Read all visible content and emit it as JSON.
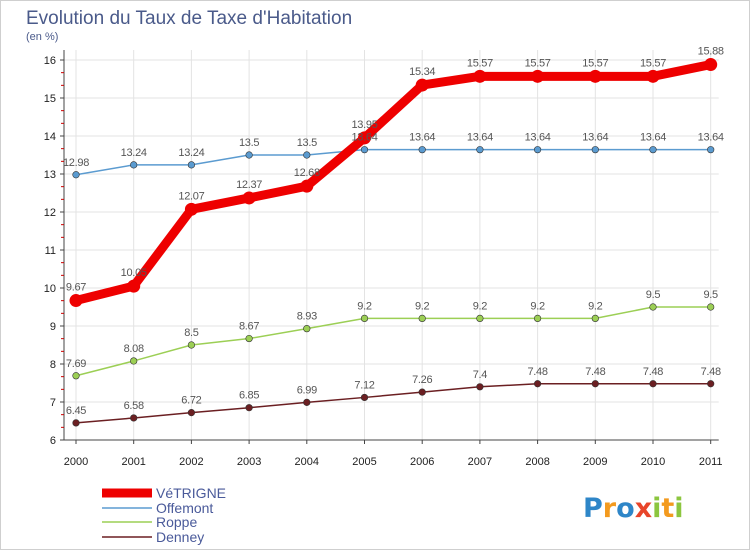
{
  "chart_data": {
    "type": "line",
    "title": "Evolution du Taux de Taxe d'Habitation",
    "subtitle": "(en %)",
    "xlabel": "",
    "ylabel": "",
    "ylim": [
      6,
      16
    ],
    "yticks": [
      "6",
      "7",
      "8",
      "9",
      "10",
      "11",
      "12",
      "13",
      "14",
      "15",
      "16"
    ],
    "x": [
      "2000",
      "2001",
      "2002",
      "2003",
      "2004",
      "2005",
      "2006",
      "2007",
      "2008",
      "2009",
      "2010",
      "2011"
    ],
    "series": [
      {
        "name": "Denney",
        "color": "#6b1f22",
        "values": [
          6.45,
          6.58,
          6.72,
          6.85,
          6.99,
          7.12,
          7.26,
          7.4,
          7.48,
          7.48,
          7.48,
          7.48
        ],
        "labels": [
          "6.45",
          "6.58",
          "6.72",
          "6.85",
          "6.99",
          "7.12",
          "7.26",
          "7.4",
          "7.48",
          "7.48",
          "7.48",
          "7.48"
        ]
      },
      {
        "name": "Roppe",
        "color": "#9ccf55",
        "values": [
          7.69,
          8.08,
          8.5,
          8.67,
          8.93,
          9.2,
          9.2,
          9.2,
          9.2,
          9.2,
          9.5,
          9.5
        ],
        "labels": [
          "7.69",
          "8.08",
          "8.5",
          "8.67",
          "8.93",
          "9.2",
          "9.2",
          "9.2",
          "9.2",
          "9.2",
          "9.5",
          "9.5"
        ]
      },
      {
        "name": "Offemont",
        "color": "#5b9bd0",
        "values": [
          12.98,
          13.24,
          13.24,
          13.5,
          13.5,
          13.64,
          13.64,
          13.64,
          13.64,
          13.64,
          13.64,
          13.64
        ],
        "labels": [
          "12.98",
          "13.24",
          "13.24",
          "13.5",
          "13.5",
          "13.64",
          "13.64",
          "13.64",
          "13.64",
          "13.64",
          "13.64",
          "13.64"
        ]
      },
      {
        "name": "VéTRIGNE",
        "color": "#ee0000",
        "values": [
          9.67,
          10.05,
          12.07,
          12.37,
          12.68,
          13.95,
          15.34,
          15.57,
          15.57,
          15.57,
          15.57,
          15.88
        ],
        "labels": [
          "9.67",
          "10.05",
          "12.07",
          "12.37",
          "12.68",
          "13.95",
          "15.34",
          "15.57",
          "15.57",
          "15.57",
          "15.57",
          "15.88"
        ]
      }
    ],
    "legend": [
      "VéTRIGNE",
      "Offemont",
      "Roppe",
      "Denney"
    ],
    "legend_position": "bottom-left"
  },
  "logo": {
    "letters": [
      "P",
      "r",
      "o",
      "x",
      "i",
      "t",
      "i"
    ],
    "colors": [
      "#2e86c8",
      "#f39a1e",
      "#2e86c8",
      "#e8452a",
      "#8cc63f",
      "#f39a1e",
      "#8cc63f"
    ]
  }
}
